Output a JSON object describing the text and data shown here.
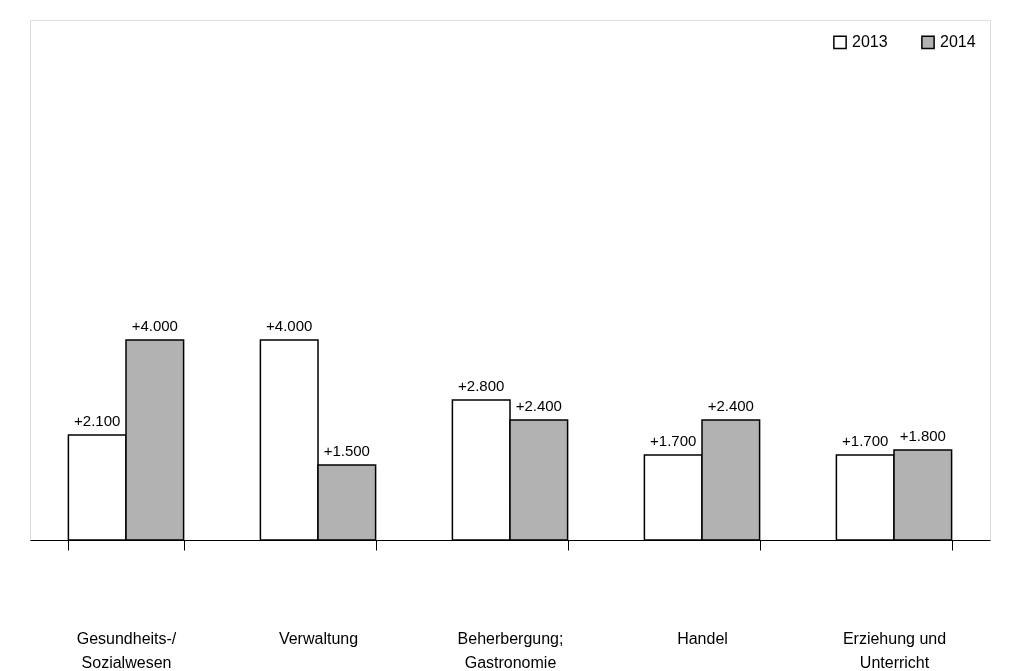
{
  "chart_data": {
    "type": "bar",
    "categories": [
      "Gesundheits-/\nSozialwesen",
      "Verwaltung",
      "Beherbergung;\nGastronomie",
      "Handel",
      "Erziehung und\nUnterricht"
    ],
    "series": [
      {
        "name": "2013",
        "color": "#ffffff",
        "values": [
          2100,
          4000,
          2800,
          1700,
          1700
        ],
        "value_labels": [
          "+2.100",
          "+4.000",
          "+2.800",
          "+1.700",
          "+1.700"
        ]
      },
      {
        "name": "2014",
        "color": "#b2b2b2",
        "values": [
          4000,
          1500,
          2400,
          2400,
          1800
        ],
        "value_labels": [
          "+4.000",
          "+1.500",
          "+2.400",
          "+2.400",
          "+1.800"
        ]
      }
    ],
    "legend": "top right",
    "grid": false
  }
}
